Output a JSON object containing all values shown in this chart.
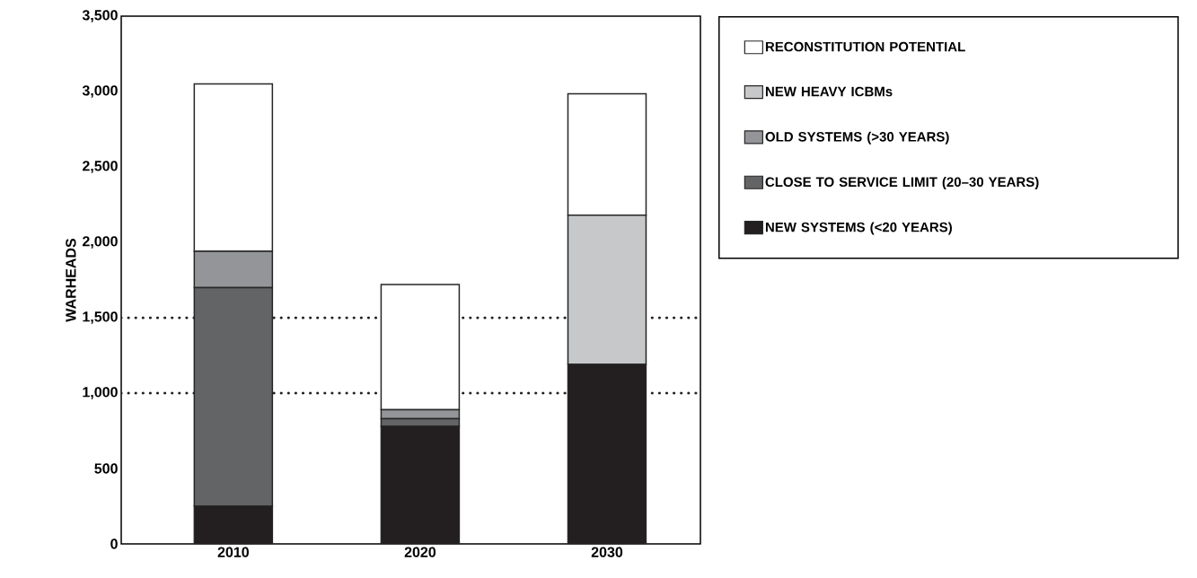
{
  "chart_data": {
    "type": "bar",
    "stacked": true,
    "ylabel": "WARHEADS",
    "categories": [
      "2010",
      "2020",
      "2030"
    ],
    "series": [
      {
        "name": "NEW SYSTEMS (<20 YEARS)",
        "color": "#231f20",
        "values": [
          250,
          780,
          1190
        ]
      },
      {
        "name": "CLOSE TO SERVICE LIMIT (20–30 YEARS)",
        "color": "#636466",
        "values": [
          1450,
          50,
          null
        ]
      },
      {
        "name": "OLD SYSTEMS (>30 YEARS)",
        "color": "#939598",
        "values": [
          240,
          60,
          null
        ]
      },
      {
        "name": "NEW HEAVY ICBMs",
        "color": "#c7c8ca",
        "values": [
          null,
          null,
          990
        ]
      },
      {
        "name": "RECONSTITUTION POTENTIAL",
        "color": "#ffffff",
        "values": [
          1110,
          830,
          805
        ]
      }
    ],
    "ylim": [
      0,
      3500
    ],
    "yticks": [
      0,
      500,
      {
        "value": 1000,
        "label": "1,000"
      },
      {
        "value": 1500,
        "label": "1,500"
      },
      {
        "value": 2000,
        "label": "2,000"
      },
      {
        "value": 2500,
        "label": "2,500"
      },
      {
        "value": 3000,
        "label": "3,000"
      },
      {
        "value": 3500,
        "label": "3,500"
      }
    ],
    "ref_lines": [
      {
        "axis": "y",
        "value": 1000,
        "color": "#231f20",
        "line_style": "dotted"
      },
      {
        "axis": "y",
        "value": 1500,
        "color": "#231f20",
        "line_style": "dotted"
      }
    ],
    "legend": "right",
    "grid": false
  }
}
